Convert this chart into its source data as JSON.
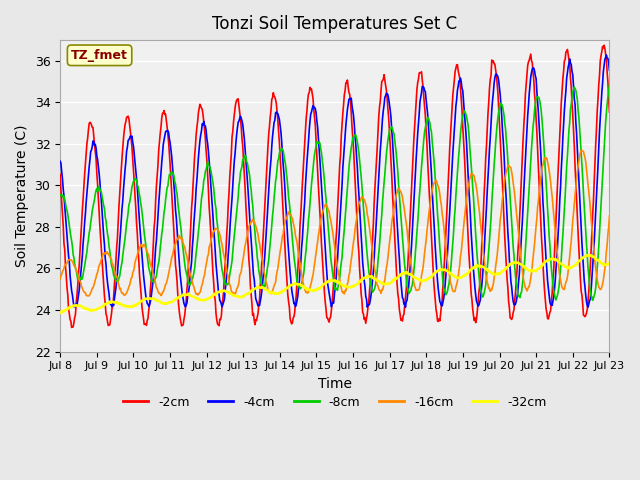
{
  "title": "Tonzi Soil Temperatures Set C",
  "xlabel": "Time",
  "ylabel": "Soil Temperature (C)",
  "annotation": "TZ_fmet",
  "annotation_color": "#880000",
  "annotation_bg": "#ffffcc",
  "annotation_edge": "#888800",
  "ylim": [
    22,
    37
  ],
  "yticks": [
    22,
    24,
    26,
    28,
    30,
    32,
    34,
    36
  ],
  "fig_bg": "#e8e8e8",
  "plot_bg": "#f0f0f0",
  "grid_color": "#ffffff",
  "lines": [
    {
      "label": "-2cm",
      "color": "#ff0000",
      "lw": 1.2
    },
    {
      "label": "-4cm",
      "color": "#0000ff",
      "lw": 1.2
    },
    {
      "label": "-8cm",
      "color": "#00cc00",
      "lw": 1.2
    },
    {
      "label": "-16cm",
      "color": "#ff8800",
      "lw": 1.2
    },
    {
      "label": "-32cm",
      "color": "#ffff00",
      "lw": 1.8
    }
  ],
  "x_start_day": 8,
  "x_end_day": 23,
  "xtick_days": [
    8,
    9,
    10,
    11,
    12,
    13,
    14,
    15,
    16,
    17,
    18,
    19,
    20,
    21,
    22,
    23
  ],
  "n_points": 720
}
